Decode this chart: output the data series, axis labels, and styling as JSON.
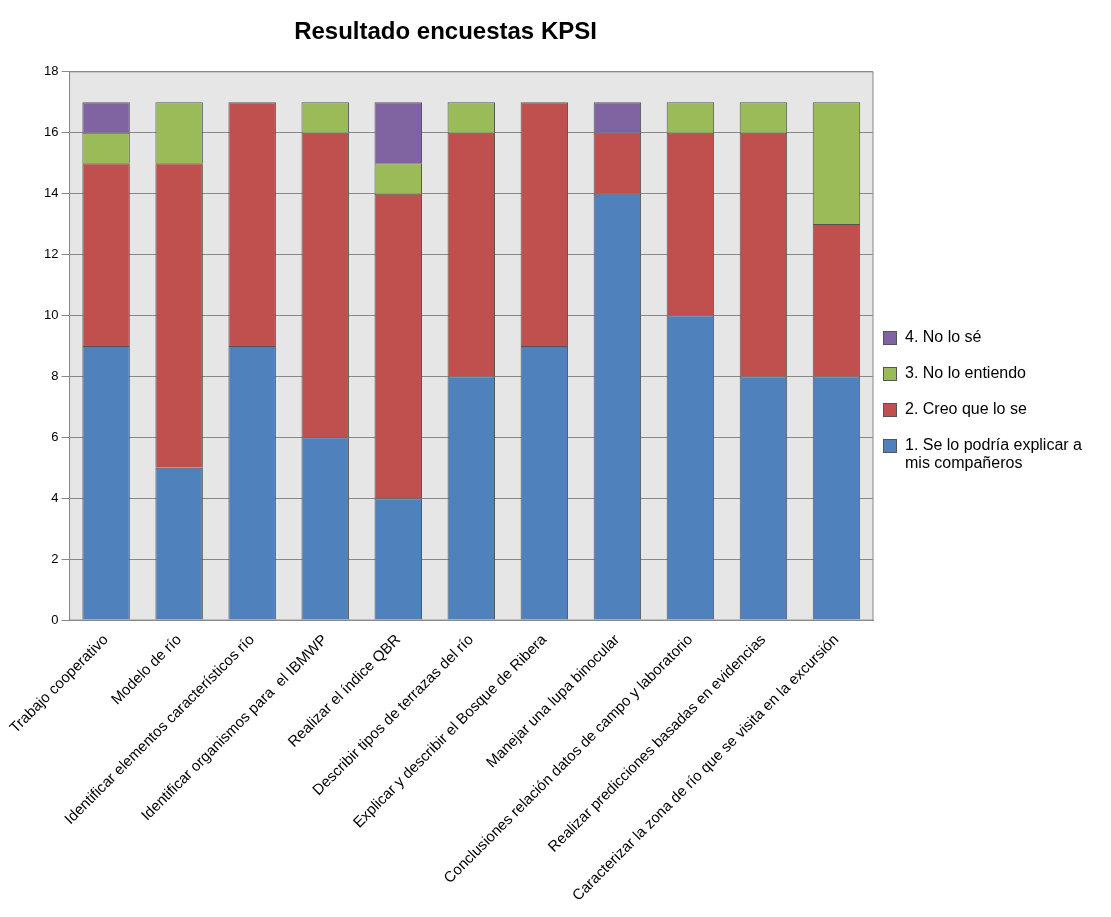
{
  "chart_data": {
    "type": "bar",
    "title": "Resultado encuestas KPSI",
    "stacked": true,
    "categories": [
      "Trabajo cooperativo",
      "Modelo de río",
      "Identificar elementos característicos río",
      "Identificar organismos para  el IBMWP",
      "Realizar el índice QBR",
      "Describir tipos de terrazas del río",
      "Explicar y describir el Bosque de Ribera",
      "Manejar una lupa binocular",
      "Conclusiones relación datos de campo y laboratorio",
      "Realizar predicciones basadas en evidencias",
      "Caracterizar la zona de río que se visita en la excursión"
    ],
    "series": [
      {
        "name": "1. Se lo podría explicar a mis compañeros",
        "color": "#4f81bd",
        "values": [
          9,
          5,
          9,
          6,
          4,
          8,
          9,
          14,
          10,
          8,
          8
        ]
      },
      {
        "name": "2. Creo que lo se",
        "color": "#c0504d",
        "values": [
          6,
          10,
          8,
          10,
          10,
          8,
          8,
          2,
          6,
          8,
          5
        ]
      },
      {
        "name": "3. No lo entiendo",
        "color": "#9bbb59",
        "values": [
          1,
          2,
          0,
          1,
          1,
          1,
          0,
          0,
          1,
          1,
          4
        ]
      },
      {
        "name": "4. No lo sé",
        "color": "#8064a2",
        "values": [
          1,
          0,
          0,
          0,
          2,
          0,
          0,
          1,
          0,
          0,
          0
        ]
      }
    ],
    "ylim": [
      0,
      18
    ],
    "yticks": [
      0,
      2,
      4,
      6,
      8,
      10,
      12,
      14,
      16,
      18
    ],
    "grid": "y",
    "legend": "right"
  }
}
